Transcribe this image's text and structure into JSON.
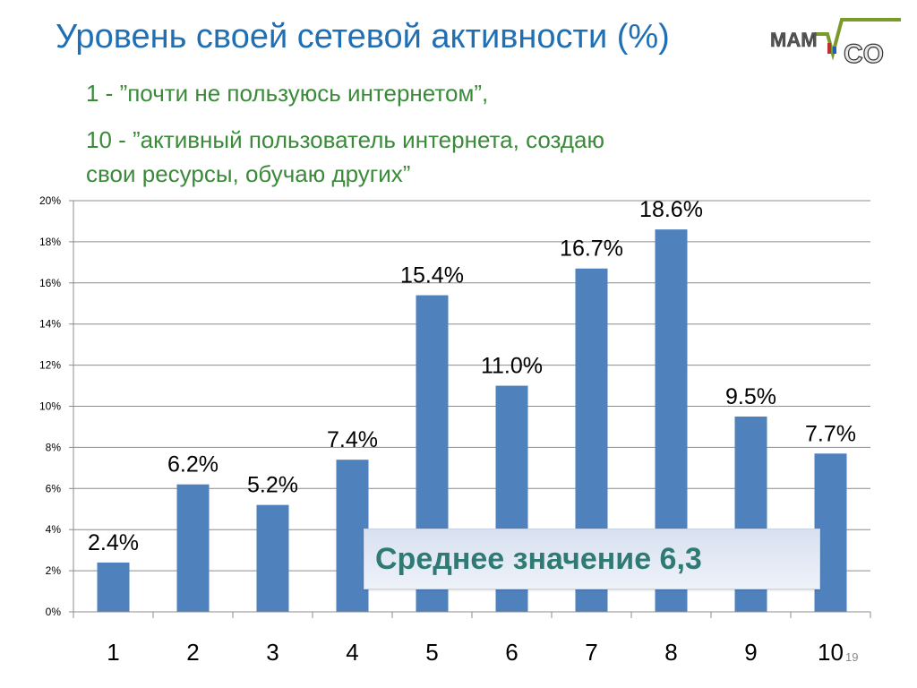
{
  "slide": {
    "title": "Уровень своей сетевой активности (%)",
    "subtitle_1": "1 - ”почти не  пользуюсь интернетом”,",
    "subtitle_2": "10 - ”активный пользователь  интернета, создаю",
    "subtitle_3": "свои ресурсы, обучаю других”",
    "callout": "Среднее значение 6,3",
    "page_number": "19",
    "logo_text": "MAMCO"
  },
  "colors": {
    "title": "#1f6fb4",
    "subtitle": "#3a8a3a",
    "bar": "#4f81bd",
    "callout_text": "#2f7a74"
  },
  "chart_data": {
    "type": "bar",
    "categories": [
      "1",
      "2",
      "3",
      "4",
      "5",
      "6",
      "7",
      "8",
      "9",
      "10"
    ],
    "values": [
      2.4,
      6.2,
      5.2,
      7.4,
      15.4,
      11.0,
      16.7,
      18.6,
      9.5,
      7.7
    ],
    "data_labels": [
      "2.4%",
      "6.2%",
      "5.2%",
      "7.4%",
      "15.4%",
      "11.0%",
      "16.7%",
      "18.6%",
      "9.5%",
      "7.7%"
    ],
    "ylim": [
      0,
      20
    ],
    "yticks": [
      0,
      2,
      4,
      6,
      8,
      10,
      12,
      14,
      16,
      18,
      20
    ],
    "ytick_labels": [
      "0%",
      "2%",
      "4%",
      "6%",
      "8%",
      "10%",
      "12%",
      "14%",
      "16%",
      "18%",
      "20%"
    ],
    "grid": true,
    "legend": "none",
    "xlabel": "",
    "ylabel": ""
  }
}
